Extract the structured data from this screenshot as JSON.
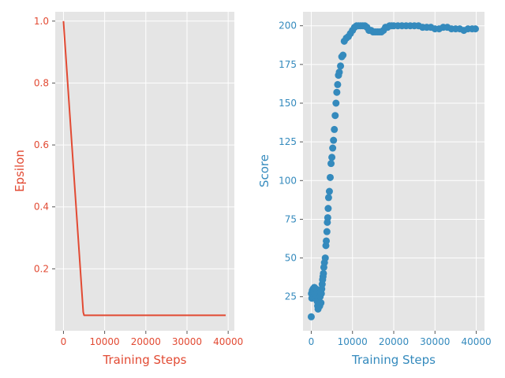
{
  "figure": {
    "background": "#ffffff",
    "panel_background": "#e5e5e5",
    "grid_color": "#ffffff",
    "left_axis_color": "#E24A33",
    "right_axis_color": "#348ABD"
  },
  "chart_data": [
    {
      "type": "line",
      "title": "",
      "xlabel": "Training Steps",
      "ylabel": "Epsilon",
      "xlim": [
        -2000,
        41500
      ],
      "ylim": [
        0.0,
        1.03
      ],
      "xticks": [
        0,
        10000,
        20000,
        30000,
        40000
      ],
      "xtick_labels": [
        "0",
        "10000",
        "20000",
        "30000",
        "40000"
      ],
      "yticks": [
        0.2,
        0.4,
        0.6,
        0.8,
        1.0
      ],
      "ytick_labels": [
        "0.2",
        "0.4",
        "0.6",
        "0.8",
        "1.0"
      ],
      "grid": true,
      "color": "#E24A33",
      "series": [
        {
          "x": [
            0,
            4800,
            5000,
            39400
          ],
          "y": [
            1.0,
            0.06,
            0.05,
            0.05
          ]
        }
      ]
    },
    {
      "type": "scatter",
      "title": "",
      "xlabel": "Training Steps",
      "ylabel": "Score",
      "xlim": [
        -2000,
        42000
      ],
      "ylim": [
        3,
        209
      ],
      "xticks": [
        0,
        10000,
        20000,
        30000,
        40000
      ],
      "xtick_labels": [
        "0",
        "10000",
        "20000",
        "30000",
        "40000"
      ],
      "yticks": [
        25,
        50,
        75,
        100,
        125,
        150,
        175,
        200
      ],
      "ytick_labels": [
        "25",
        "50",
        "75",
        "100",
        "125",
        "150",
        "175",
        "200"
      ],
      "grid": true,
      "color": "#348ABD",
      "series": [
        {
          "x": [
            0,
            50,
            150,
            250,
            350,
            450,
            550,
            650,
            750,
            850,
            950,
            1050,
            1150,
            1250,
            1350,
            1450,
            1550,
            1650,
            1750,
            1850,
            1950,
            2050,
            2150,
            2250,
            2350,
            2450,
            2550,
            2650,
            2750,
            2850,
            2950,
            3050,
            3200,
            3400,
            3550,
            3650,
            3800,
            3900,
            4000,
            4100,
            4200,
            4400,
            4600,
            4800,
            5000,
            5200,
            5400,
            5600,
            5800,
            6000,
            6200,
            6400,
            6600,
            6800,
            7100,
            7400,
            7700,
            8000,
            8500,
            9000,
            9500,
            10000,
            10500,
            11000,
            11500,
            12000,
            12500,
            13000,
            13500,
            14000,
            14500,
            15000,
            15500,
            16000,
            16500,
            17000,
            17500,
            18000,
            18500,
            19000,
            19500,
            20000,
            21000,
            22000,
            23000,
            24000,
            25000,
            26000,
            27000,
            28000,
            29000,
            30000,
            31000,
            32000,
            33000,
            34000,
            35000,
            36000,
            37000,
            38000,
            39000,
            39800
          ],
          "y": [
            12,
            27,
            24,
            29,
            26,
            30,
            25,
            28,
            31,
            27,
            24,
            29,
            30,
            27,
            25,
            22,
            19,
            17,
            21,
            24,
            27,
            19,
            25,
            28,
            21,
            27,
            30,
            33,
            36,
            38,
            40,
            44,
            47,
            50,
            58,
            61,
            67,
            73,
            76,
            82,
            89,
            93,
            102,
            111,
            115,
            121,
            126,
            133,
            142,
            150,
            157,
            162,
            168,
            170,
            174,
            180,
            181,
            190,
            192,
            193,
            195,
            197,
            199,
            200,
            200,
            200,
            200,
            200,
            199,
            197,
            197,
            196,
            196,
            196,
            196,
            196,
            197,
            199,
            199,
            200,
            200,
            200,
            200,
            200,
            200,
            200,
            200,
            200,
            199,
            199,
            199,
            198,
            198,
            199,
            199,
            198,
            198,
            198,
            197,
            198,
            198,
            198
          ]
        }
      ]
    }
  ]
}
